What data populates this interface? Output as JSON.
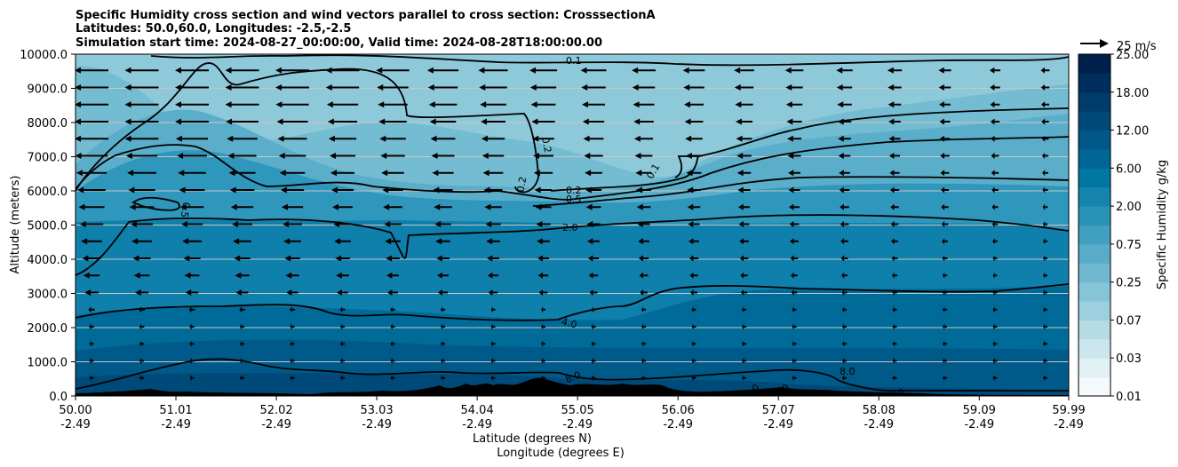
{
  "chart_data": {
    "type": "contour",
    "title_lines": [
      "Specific Humidity cross section and wind vectors parallel to cross section: CrosssectionA",
      "Latitudes: 50.0,60.0, Longitudes: -2.5,-2.5",
      "Simulation start time: 2024-08-27_00:00:00, Valid time: 2024-08-28T18:00:00.00"
    ],
    "ylabel": "Altitude (meters)",
    "xlabel_lat": "Latitude (degrees N)",
    "xlabel_lon": "Longitude (degrees E)",
    "ylim": [
      0,
      10000
    ],
    "y_ticks": [
      "0.0",
      "1000.0",
      "2000.0",
      "3000.0",
      "4000.0",
      "5000.0",
      "6000.0",
      "7000.0",
      "8000.0",
      "9000.0",
      "10000.0"
    ],
    "x_ticks": [
      {
        "lat": "50.00",
        "lon": "-2.49"
      },
      {
        "lat": "51.01",
        "lon": "-2.49"
      },
      {
        "lat": "52.02",
        "lon": "-2.49"
      },
      {
        "lat": "53.03",
        "lon": "-2.49"
      },
      {
        "lat": "54.04",
        "lon": "-2.49"
      },
      {
        "lat": "55.05",
        "lon": "-2.49"
      },
      {
        "lat": "56.06",
        "lon": "-2.49"
      },
      {
        "lat": "57.07",
        "lon": "-2.49"
      },
      {
        "lat": "58.08",
        "lon": "-2.49"
      },
      {
        "lat": "59.09",
        "lon": "-2.49"
      },
      {
        "lat": "59.99",
        "lon": "-2.49"
      }
    ],
    "grid": "horizontal",
    "colorbar": {
      "label": "Specific Humidity g/kg",
      "ticks": [
        "0.01",
        "0.03",
        "0.07",
        "0.25",
        "0.75",
        "2.00",
        "6.00",
        "12.00",
        "18.00",
        "25.00"
      ],
      "colors": [
        "#f4fafb",
        "#e0f0f3",
        "#cbe6ec",
        "#b5dbe5",
        "#9dd0de",
        "#86c4d7",
        "#6fb8cf",
        "#58acc8",
        "#41a0c0",
        "#2a93b8",
        "#1585ae",
        "#0076a3",
        "#006796",
        "#005888",
        "#004a7a",
        "#003c6b",
        "#002e5c",
        "#00204c"
      ]
    },
    "wind_key": "25 m/s",
    "contour_labels": [
      "0.1",
      "0.1",
      "0.2",
      "0.2",
      "0.2",
      "0.5",
      "0.5",
      "2.0",
      "4.0",
      "8.0",
      "8.0",
      "8.0",
      "8.0",
      "8.0"
    ]
  }
}
